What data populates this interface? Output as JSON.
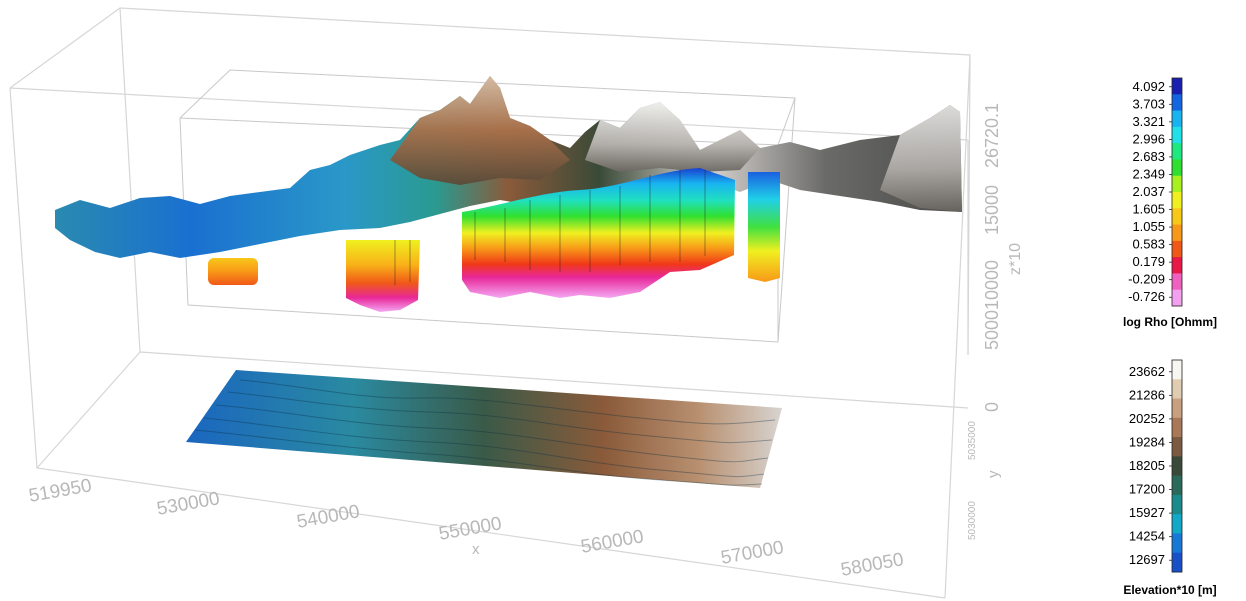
{
  "x_axis": {
    "label": "x",
    "ticks": [
      "519950",
      "530000",
      "540000",
      "550000",
      "560000",
      "570000",
      "580050"
    ]
  },
  "y_axis": {
    "label": "y",
    "ticks": [
      "5030000",
      "5035000"
    ]
  },
  "z_axis": {
    "label": "z*10",
    "ticks": [
      "0",
      "5000",
      "10000",
      "15000",
      "26720.1"
    ]
  },
  "colorbar_resistivity": {
    "title": "log Rho [Ohmm]",
    "values": [
      "4.092",
      "3.703",
      "3.321",
      "2.996",
      "2.683",
      "2.349",
      "2.037",
      "1.605",
      "1.055",
      "0.583",
      "0.179",
      "-0.209",
      "-0.726"
    ],
    "colors": [
      "#1a1fb0",
      "#1366e0",
      "#18b4f0",
      "#22e0e8",
      "#20e880",
      "#30e030",
      "#a8f020",
      "#f0f020",
      "#f8c818",
      "#f89818",
      "#f05818",
      "#e81848",
      "#f060c0",
      "#f4a0f0"
    ]
  },
  "colorbar_elevation": {
    "title": "Elevation*10 [m]",
    "values": [
      "23662",
      "21286",
      "20252",
      "19284",
      "18205",
      "17200",
      "15927",
      "14254",
      "12697"
    ],
    "colors": [
      "#f8f6f0",
      "#e0ccb0",
      "#c8a080",
      "#a87858",
      "#7a5a40",
      "#3a4a38",
      "#2a6a5a",
      "#1a8a8a",
      "#12a8c8",
      "#1878d8",
      "#1850c8"
    ]
  }
}
